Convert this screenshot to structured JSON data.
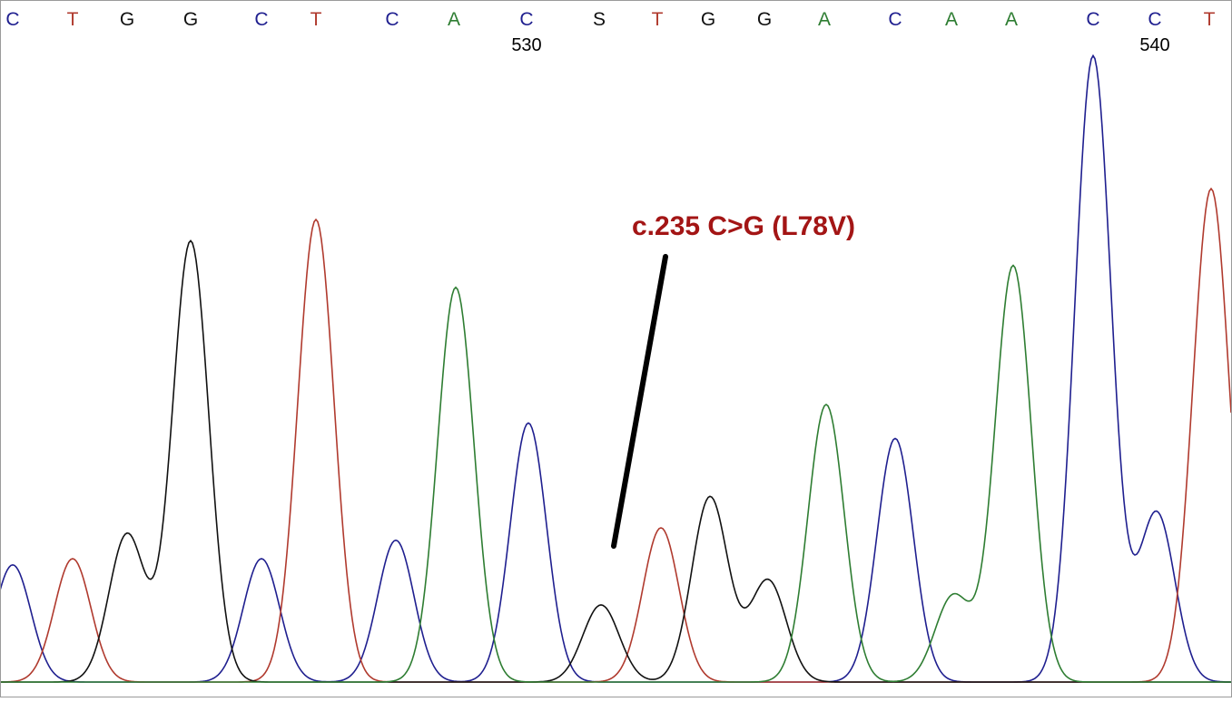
{
  "chart_data": {
    "type": "line",
    "bases": [
      "C",
      "T",
      "G",
      "G",
      "C",
      "T",
      "C",
      "A",
      "C",
      "S",
      "T",
      "G",
      "G",
      "A",
      "C",
      "A",
      "A",
      "C",
      "C",
      "T"
    ],
    "position_labels": [
      {
        "after_base_index": 8,
        "text": "530"
      },
      {
        "after_base_index": 18,
        "text": "540"
      }
    ],
    "annotation": "c.235 C>G (L78V)",
    "colors": {
      "A": "#2e7d32",
      "C": "#1f1f8f",
      "G": "#111111",
      "T": "#b03a2e",
      "S": "#111111",
      "annotation": "#a31515",
      "pointer": "#000000"
    },
    "series": [
      {
        "base": "C",
        "peaks": [
          [
            14,
            38
          ],
          [
            288,
            40
          ],
          [
            436,
            46
          ],
          [
            582,
            84
          ],
          [
            986,
            79
          ],
          [
            1204,
            203
          ],
          [
            1274,
            55
          ]
        ]
      },
      {
        "base": "T",
        "peaks": [
          [
            80,
            40
          ],
          [
            348,
            150
          ],
          [
            728,
            50
          ],
          [
            1334,
            160
          ]
        ]
      },
      {
        "base": "G",
        "peaks": [
          [
            140,
            48
          ],
          [
            210,
            143
          ],
          [
            662,
            25
          ],
          [
            782,
            60
          ],
          [
            846,
            33
          ]
        ]
      },
      {
        "base": "A",
        "peaks": [
          [
            502,
            128
          ],
          [
            910,
            90
          ],
          [
            1050,
            28
          ],
          [
            1116,
            135
          ]
        ]
      }
    ]
  }
}
